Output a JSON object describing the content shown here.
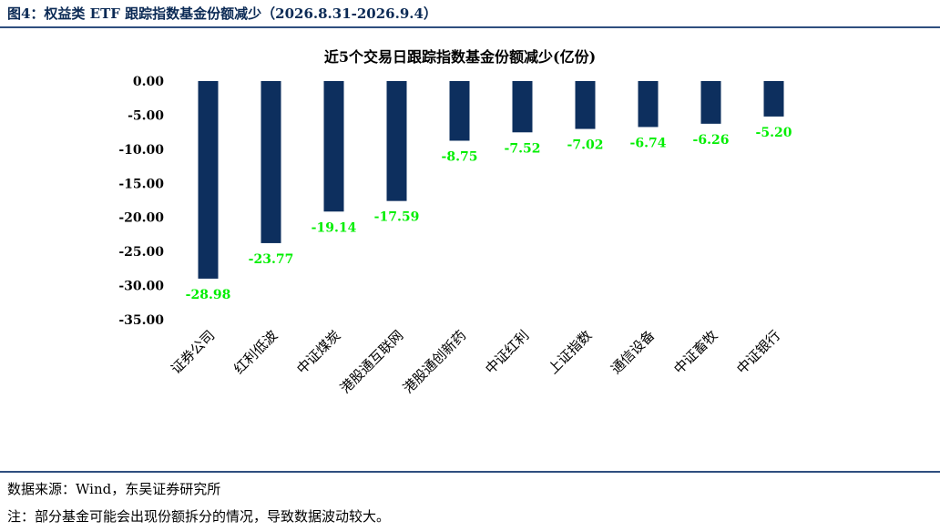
{
  "header": {
    "figure_title": "图4：权益类 ETF 跟踪指数基金份额减少（2026.8.31-2026.9.4）"
  },
  "footer": {
    "source": "数据来源：Wind，东吴证券研究所",
    "note": "注：部分基金可能会出现份额拆分的情况，导致数据波动较大。"
  },
  "colors": {
    "bar": "#0d2f5e",
    "data_label": "#00ee00",
    "rule": "#2f4f7f"
  },
  "chart_data": {
    "type": "bar",
    "title": "近5个交易日跟踪指数基金份额减少(亿份)",
    "xlabel": "",
    "ylabel": "",
    "categories": [
      "证券公司",
      "红利低波",
      "中证煤炭",
      "港股通互联网",
      "港股通创新药",
      "中证红利",
      "上证指数",
      "通信设备",
      "中证畜牧",
      "中证银行"
    ],
    "values": [
      -28.98,
      -23.77,
      -19.14,
      -17.59,
      -8.75,
      -7.52,
      -7.02,
      -6.74,
      -6.26,
      -5.2
    ],
    "data_labels": [
      "-28.98",
      "-23.77",
      "-19.14",
      "-17.59",
      "-8.75",
      "-7.52",
      "-7.02",
      "-6.74",
      "-6.26",
      "-5.20"
    ],
    "yticks": [
      "0.00",
      "-5.00",
      "-10.00",
      "-15.00",
      "-20.00",
      "-25.00",
      "-30.00",
      "-35.00"
    ],
    "ylim": [
      -35,
      0
    ],
    "grid": false,
    "legend": "none"
  }
}
